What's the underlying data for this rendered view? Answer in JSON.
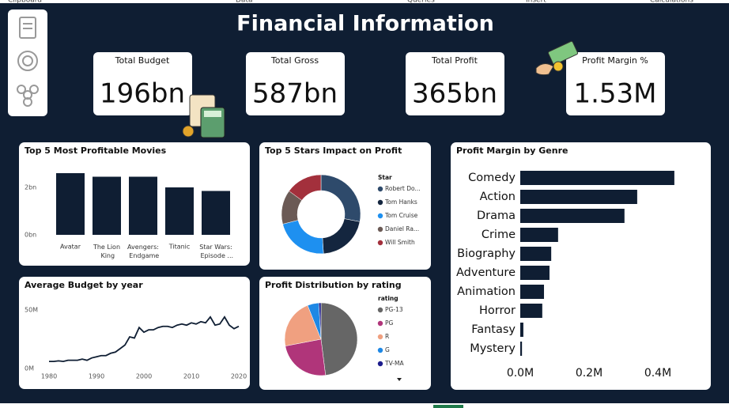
{
  "ribbon": [
    "Clipboard",
    "Data",
    "Queries",
    "Insert",
    "Calculations"
  ],
  "header": {
    "title": "Financial Information"
  },
  "kpis": [
    {
      "label": "Total Budget",
      "value": "196bn"
    },
    {
      "label": "Total Gross",
      "value": "587bn"
    },
    {
      "label": "Total Profit",
      "value": "365bn"
    },
    {
      "label": "Profit Margin %",
      "value": "1.53M"
    }
  ],
  "chart_data": [
    {
      "type": "bar",
      "title": "Top 5 Most Profitable Movies",
      "categories": [
        "Avatar",
        "The Lion King",
        "Avengers: Endgame",
        "Titanic",
        "Star Wars: Episode ..."
      ],
      "values": [
        2.6,
        2.45,
        2.45,
        2.0,
        1.85
      ],
      "color": "#0f1e33",
      "ylim": [
        0,
        2.7
      ],
      "yticks": [
        {
          "value": 0,
          "label": "0bn"
        },
        {
          "value": 2,
          "label": "2bn"
        }
      ]
    },
    {
      "type": "donut",
      "title": "Top 5 Stars Impact on Profit",
      "legend_title": "Star",
      "categories": [
        "Robert Do...",
        "Tom Hanks",
        "Tom Cruise",
        "Daniel Ra...",
        "Will Smith"
      ],
      "values": [
        28,
        21,
        22,
        14,
        15
      ],
      "colors": [
        "#2e4a6b",
        "#14263f",
        "#1e90f0",
        "#6b5a55",
        "#a3303c"
      ]
    },
    {
      "type": "line",
      "title": "Average Budget by year",
      "x": [
        1980,
        1981,
        1982,
        1983,
        1984,
        1985,
        1986,
        1987,
        1988,
        1989,
        1990,
        1991,
        1992,
        1993,
        1994,
        1995,
        1996,
        1997,
        1998,
        1999,
        2000,
        2001,
        2002,
        2003,
        2004,
        2005,
        2006,
        2007,
        2008,
        2009,
        2010,
        2011,
        2012,
        2013,
        2014,
        2015,
        2016,
        2017,
        2018,
        2019,
        2020
      ],
      "values": [
        6,
        6,
        6.5,
        6,
        7,
        7,
        7,
        8,
        7,
        9,
        10,
        11,
        11,
        13,
        14,
        17,
        20,
        27,
        26,
        35,
        31,
        33,
        33,
        35,
        36,
        36,
        35,
        37,
        38,
        37,
        39,
        38,
        40,
        39,
        44,
        37,
        38,
        44,
        37,
        34,
        36
      ],
      "color": "#0f1e33",
      "xlim": [
        1978,
        2022
      ],
      "xticks": [
        1980,
        1990,
        2000,
        2010,
        2020
      ],
      "ylim": [
        0,
        60
      ],
      "yticks": [
        {
          "value": 0,
          "label": "0M"
        },
        {
          "value": 50,
          "label": "50M"
        }
      ]
    },
    {
      "type": "pie",
      "title": "Profit Distribution by rating",
      "legend_title": "rating",
      "categories": [
        "PG-13",
        "PG",
        "R",
        "G",
        "TV-MA"
      ],
      "values": [
        48,
        24,
        22,
        5,
        1
      ],
      "colors": [
        "#666666",
        "#b0357a",
        "#f0a080",
        "#1e88e5",
        "#1c1c8c"
      ]
    },
    {
      "type": "bar",
      "horizontal": true,
      "title": "Profit Margin by Genre",
      "categories": [
        "Comedy",
        "Action",
        "Drama",
        "Crime",
        "Biography",
        "Adventure",
        "Animation",
        "Horror",
        "Fantasy",
        "Mystery"
      ],
      "values": [
        0.448,
        0.34,
        0.303,
        0.11,
        0.09,
        0.085,
        0.069,
        0.064,
        0.009,
        0.005
      ],
      "color": "#0f1e33",
      "xlim": [
        0,
        0.46
      ],
      "xticks": [
        {
          "value": 0,
          "label": "0.0M"
        },
        {
          "value": 0.2,
          "label": "0.2M"
        },
        {
          "value": 0.4,
          "label": "0.4M"
        }
      ]
    }
  ]
}
